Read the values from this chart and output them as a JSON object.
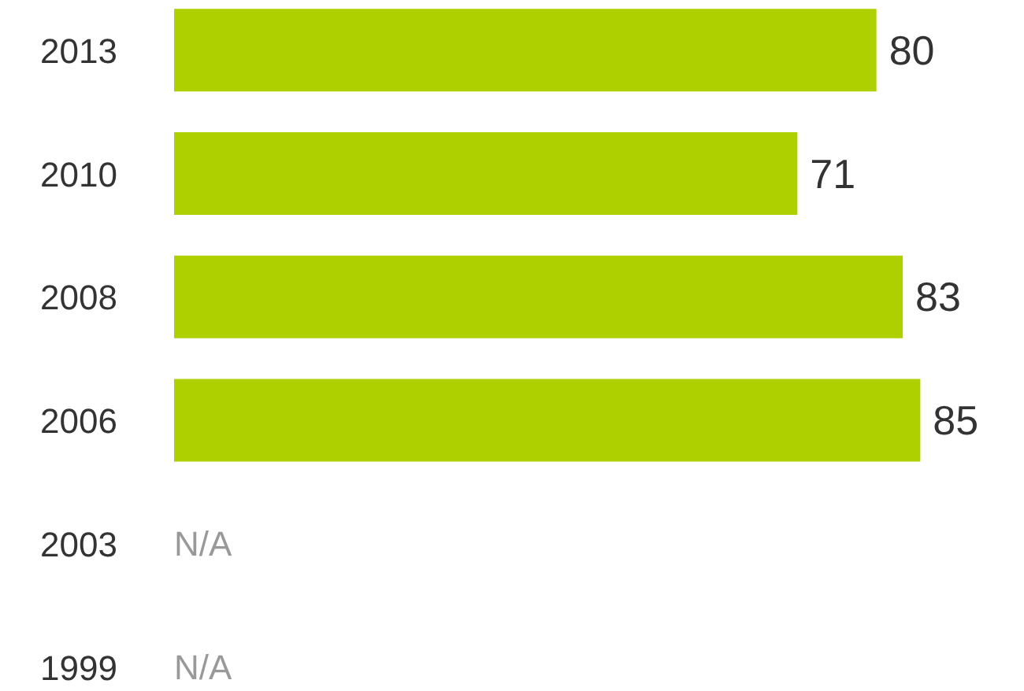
{
  "chart_data": {
    "type": "bar",
    "orientation": "horizontal",
    "categories": [
      "2013",
      "2010",
      "2008",
      "2006",
      "2003",
      "1999"
    ],
    "values": [
      80,
      71,
      83,
      85,
      null,
      null
    ],
    "value_labels": [
      "80",
      "71",
      "83",
      "85",
      "N/A",
      "N/A"
    ],
    "color": "#aed000",
    "grid": false
  }
}
